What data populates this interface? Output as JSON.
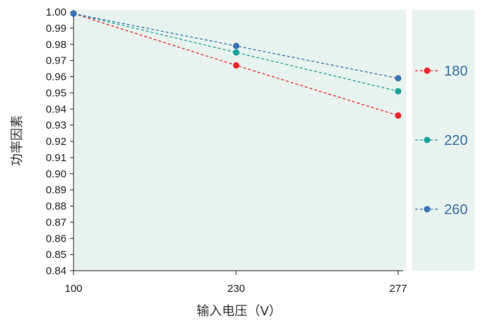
{
  "chart_data": {
    "type": "line",
    "title": "",
    "xlabel": "输入电压（V）",
    "ylabel": "功率因素",
    "categories": [
      "100",
      "230",
      "277"
    ],
    "ylim": [
      0.84,
      1.0
    ],
    "yticks": [
      "0.84",
      "0.85",
      "0.86",
      "0.87",
      "0.88",
      "0.89",
      "0.90",
      "0.91",
      "0.92",
      "0.93",
      "0.94",
      "0.95",
      "0.96",
      "0.97",
      "0.98",
      "0.99",
      "1.00"
    ],
    "grid": false,
    "legend_position": "right",
    "series": [
      {
        "name": "180",
        "color": "#e8262a",
        "values": [
          0.999,
          0.967,
          0.936
        ]
      },
      {
        "name": "220",
        "color": "#1aa39a",
        "values": [
          0.999,
          0.975,
          0.951
        ]
      },
      {
        "name": "260",
        "color": "#3a72b4",
        "values": [
          0.999,
          0.979,
          0.959
        ]
      }
    ],
    "plot_background": "#e8f2ee"
  }
}
